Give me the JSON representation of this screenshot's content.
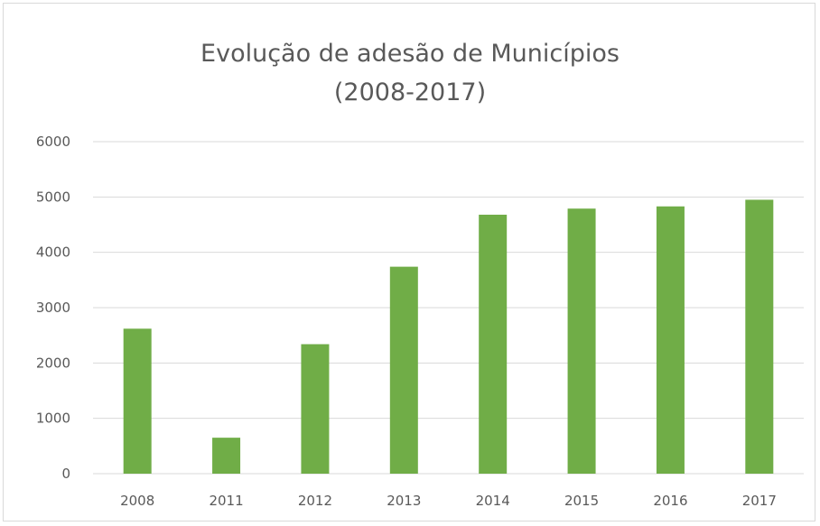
{
  "chart_data": {
    "type": "bar",
    "title": "Evolução de adesão de Municípios",
    "subtitle": "(2008-2017)",
    "xlabel": "",
    "ylabel": "",
    "categories": [
      "2008",
      "2011",
      "2012",
      "2013",
      "2014",
      "2015",
      "2016",
      "2017"
    ],
    "values": [
      2620,
      650,
      2340,
      3740,
      4680,
      4790,
      4830,
      4950
    ],
    "ylim": [
      0,
      6000
    ],
    "yticks": [
      "0",
      "1000",
      "2000",
      "3000",
      "4000",
      "5000",
      "6000"
    ],
    "grid": true,
    "legend": "none",
    "bar_color": "#70ad47",
    "grid_color": "#d9d9d9"
  }
}
